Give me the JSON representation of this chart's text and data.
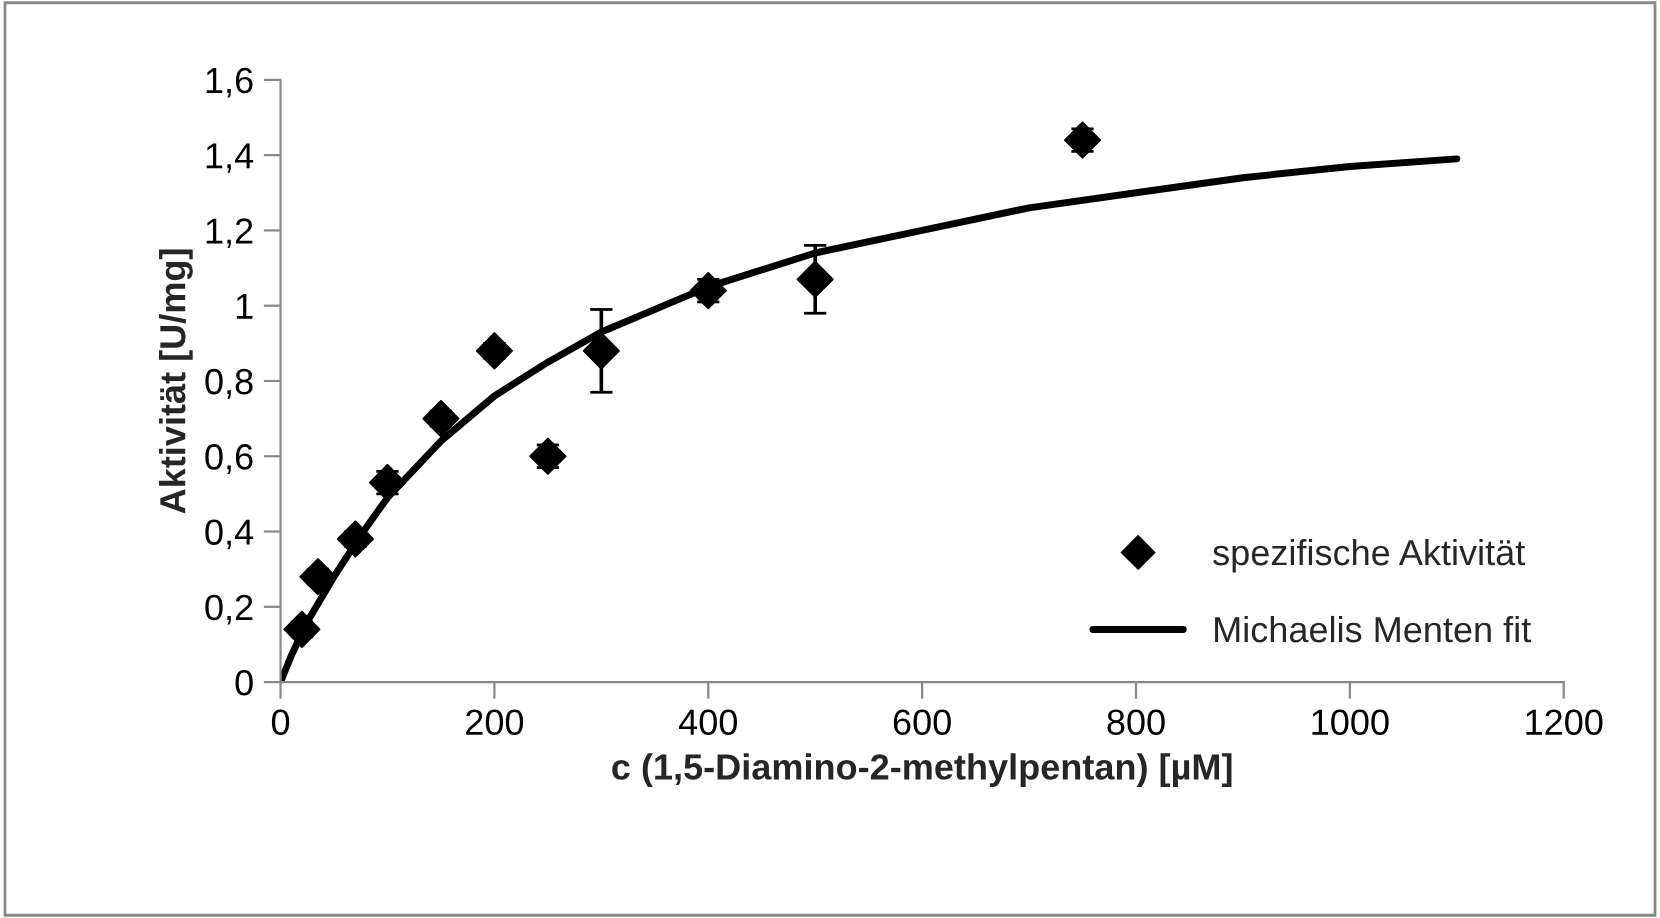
{
  "chart_data": {
    "type": "scatter",
    "xlabel": "c (1,5-Diamino-2-methylpentan) [µM]",
    "ylabel": "Aktivität [U/mg]",
    "xlim": [
      0,
      1200
    ],
    "xticks": [
      0,
      200,
      400,
      600,
      800,
      1000,
      1200
    ],
    "ylim": [
      0,
      1.6
    ],
    "yticks": [
      {
        "value": 0,
        "label": "0"
      },
      {
        "value": 0.2,
        "label": "0,2"
      },
      {
        "value": 0.4,
        "label": "0,4"
      },
      {
        "value": 0.6,
        "label": "0,6"
      },
      {
        "value": 0.8,
        "label": "0,8"
      },
      {
        "value": 1,
        "label": "1"
      },
      {
        "value": 1.2,
        "label": "1,2"
      },
      {
        "value": 1.4,
        "label": "1,4"
      },
      {
        "value": 1.6,
        "label": "1,6"
      }
    ],
    "grid": false,
    "legend": "bottom right",
    "series": [
      {
        "name": "spezifische Aktivität",
        "marker": "diamond",
        "color": "#000000",
        "x": [
          20,
          35,
          70,
          100,
          150,
          200,
          250,
          300,
          400,
          500,
          750
        ],
        "values": [
          0.14,
          0.28,
          0.38,
          0.53,
          0.7,
          0.88,
          0.6,
          0.88,
          1.04,
          1.07,
          1.44
        ],
        "errors": [
          0.02,
          0.02,
          0.02,
          0.03,
          0.02,
          0.02,
          0.03,
          0.11,
          0.03,
          0.09,
          0.03
        ]
      },
      {
        "name": "Michaelis Menten fit",
        "type": "line",
        "marker": "none",
        "line_style": "solid",
        "color": "#000000",
        "x": [
          0,
          10,
          25,
          50,
          75,
          100,
          150,
          200,
          250,
          300,
          400,
          500,
          600,
          700,
          800,
          900,
          1000,
          1100
        ],
        "values": [
          0,
          0.07,
          0.16,
          0.28,
          0.39,
          0.49,
          0.64,
          0.76,
          0.85,
          0.93,
          1.05,
          1.14,
          1.2,
          1.26,
          1.3,
          1.34,
          1.37,
          1.39
        ]
      }
    ]
  }
}
